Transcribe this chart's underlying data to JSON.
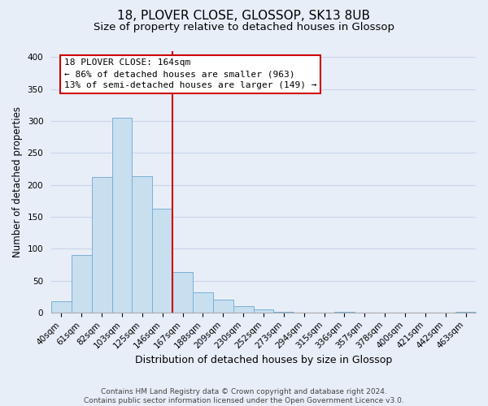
{
  "title": "18, PLOVER CLOSE, GLOSSOP, SK13 8UB",
  "subtitle": "Size of property relative to detached houses in Glossop",
  "xlabel": "Distribution of detached houses by size in Glossop",
  "ylabel": "Number of detached properties",
  "bin_labels": [
    "40sqm",
    "61sqm",
    "82sqm",
    "103sqm",
    "125sqm",
    "146sqm",
    "167sqm",
    "188sqm",
    "209sqm",
    "230sqm",
    "252sqm",
    "273sqm",
    "294sqm",
    "315sqm",
    "336sqm",
    "357sqm",
    "378sqm",
    "400sqm",
    "421sqm",
    "442sqm",
    "463sqm"
  ],
  "bar_heights": [
    17,
    90,
    212,
    305,
    213,
    162,
    64,
    31,
    20,
    10,
    5,
    1,
    0,
    0,
    1,
    0,
    0,
    0,
    0,
    0,
    1
  ],
  "bar_color": "#c8dff0",
  "bar_edge_color": "#7ab0d4",
  "vline_x_idx": 6,
  "vline_color": "#cc0000",
  "ylim": [
    0,
    410
  ],
  "yticks": [
    0,
    50,
    100,
    150,
    200,
    250,
    300,
    350,
    400
  ],
  "annotation_title": "18 PLOVER CLOSE: 164sqm",
  "annotation_line1": "← 86% of detached houses are smaller (963)",
  "annotation_line2": "13% of semi-detached houses are larger (149) →",
  "annotation_box_color": "white",
  "annotation_box_edge": "#cc0000",
  "footer_line1": "Contains HM Land Registry data © Crown copyright and database right 2024.",
  "footer_line2": "Contains public sector information licensed under the Open Government Licence v3.0.",
  "background_color": "#e8eef8",
  "grid_color": "#c8d4e8",
  "title_fontsize": 11,
  "subtitle_fontsize": 9.5,
  "ylabel_fontsize": 8.5,
  "xlabel_fontsize": 9,
  "tick_fontsize": 7.5,
  "footer_fontsize": 6.5
}
